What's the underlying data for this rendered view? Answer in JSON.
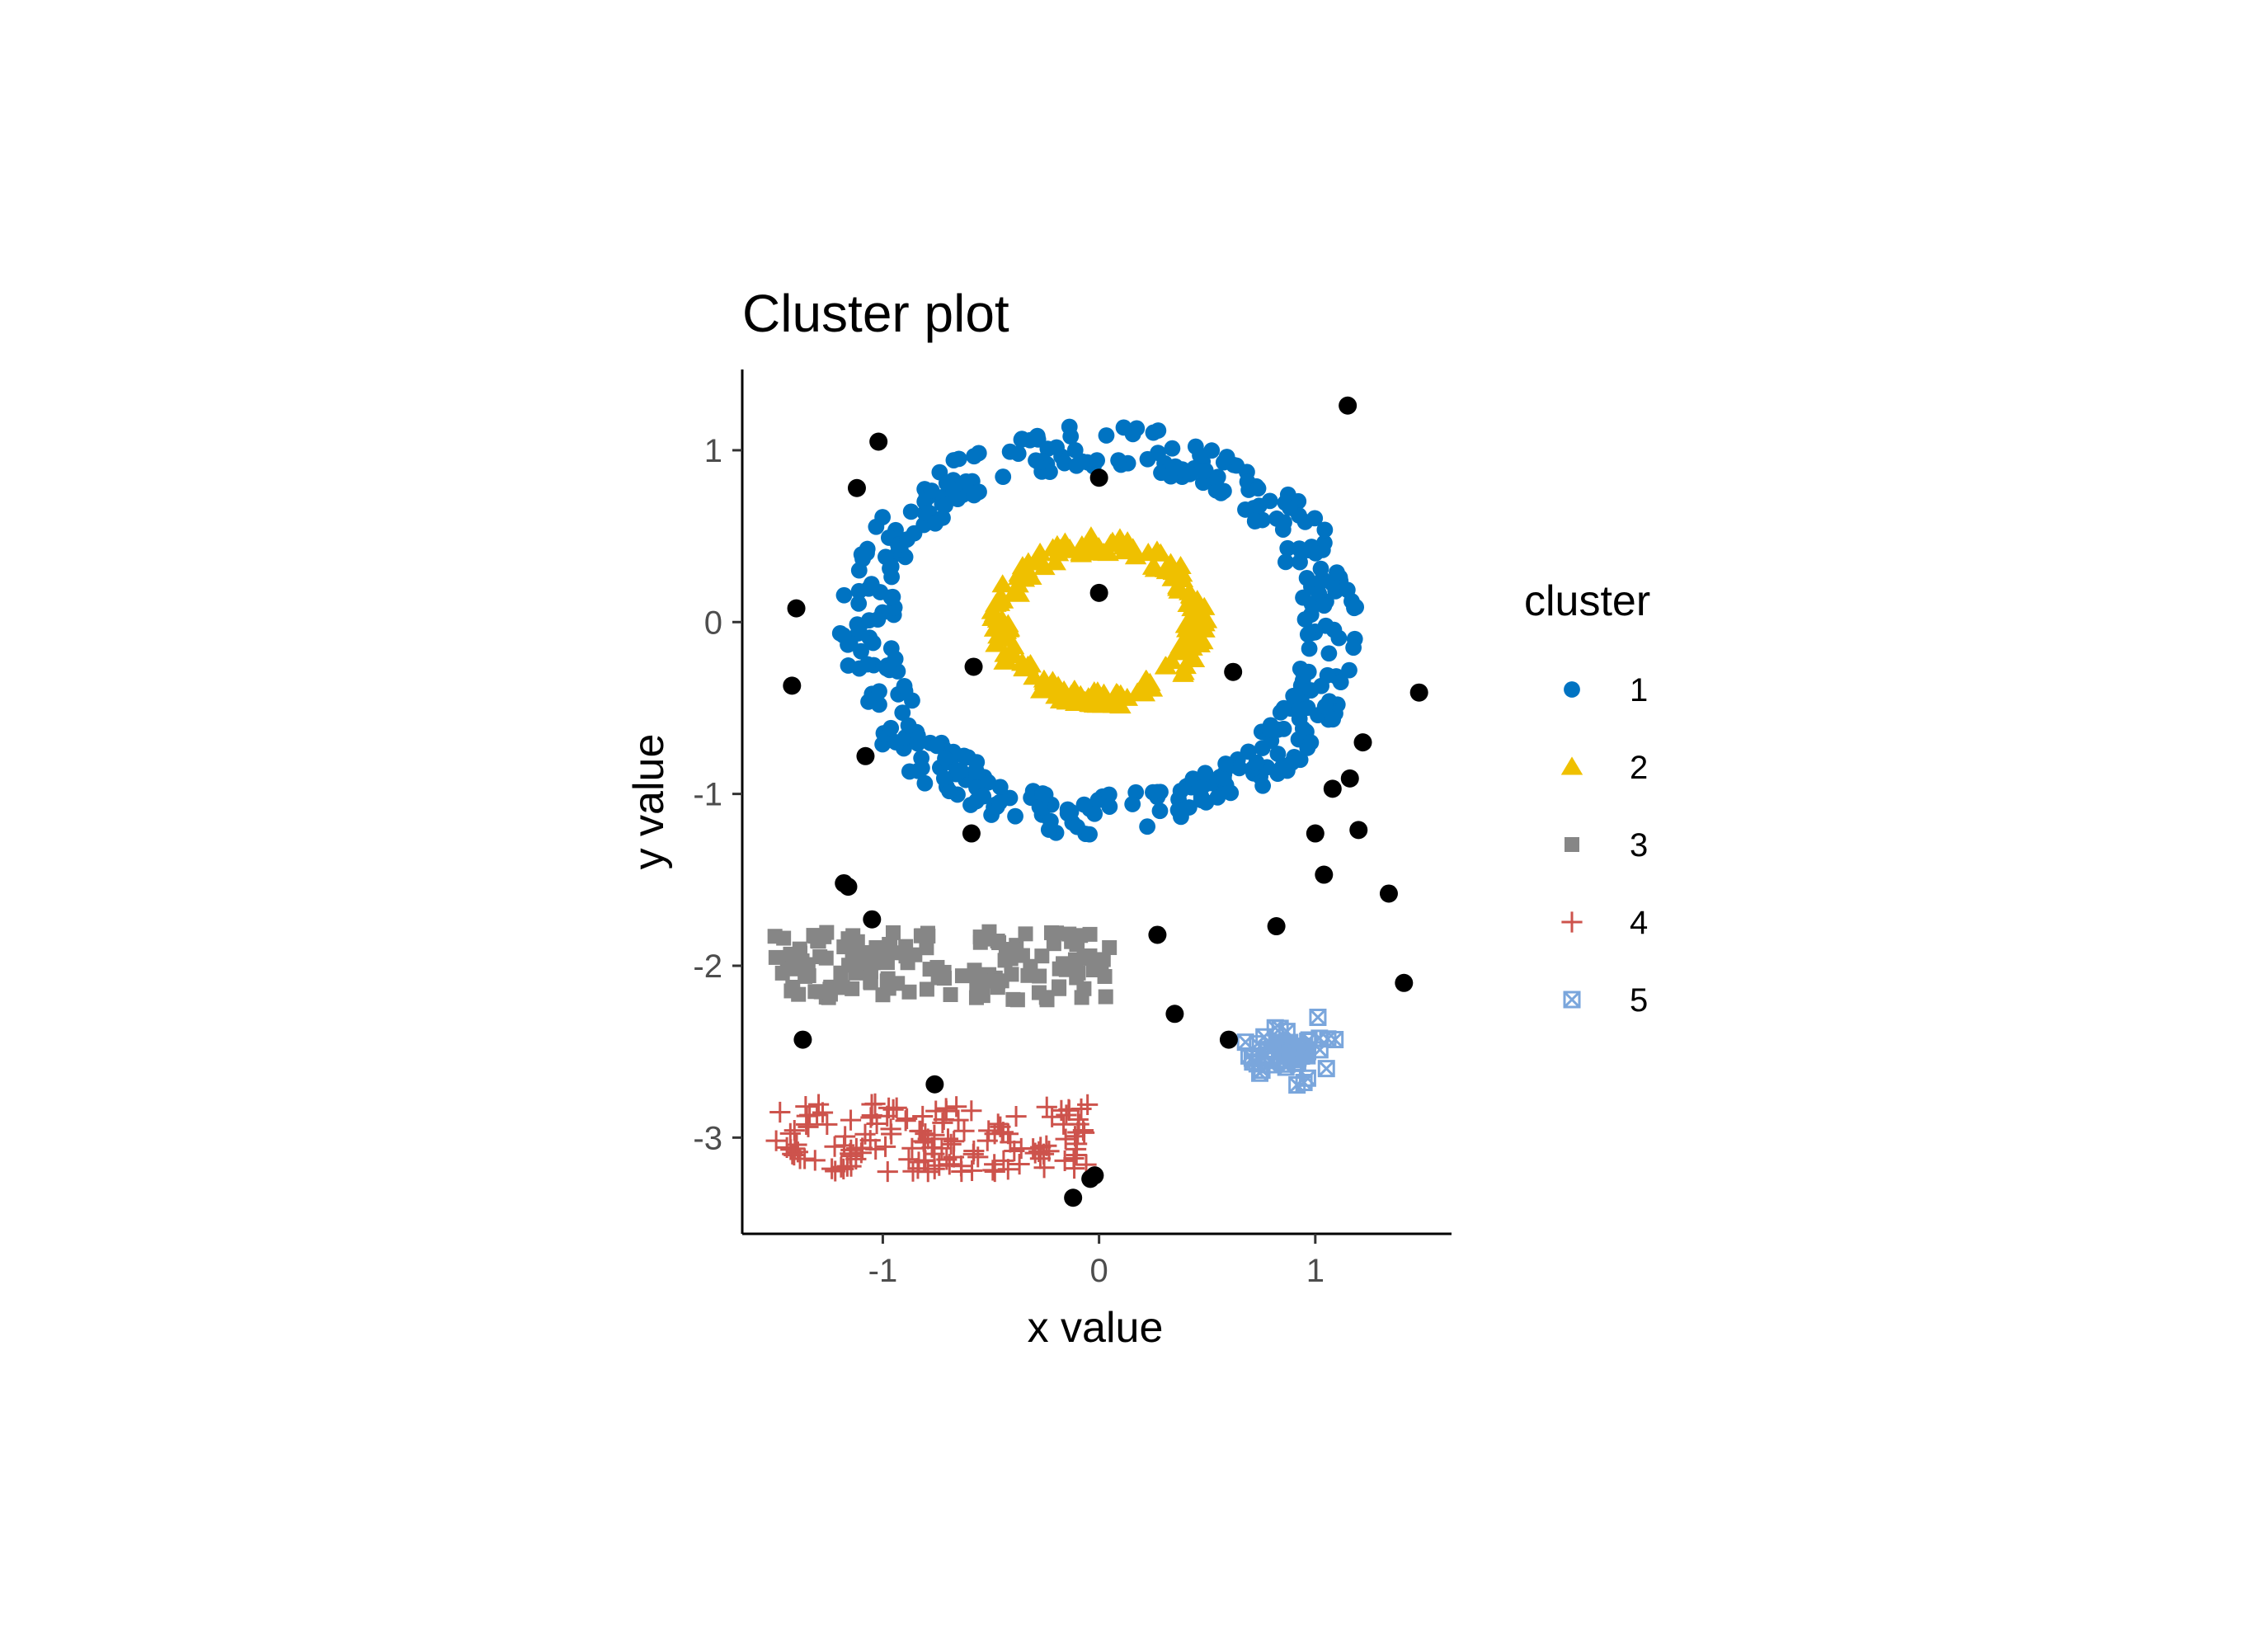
{
  "chart_data": {
    "type": "scatter",
    "title": "Cluster plot",
    "xlabel": "x value",
    "ylabel": "y value",
    "xlim": [
      -1.65,
      1.63
    ],
    "ylim": [
      -3.56,
      1.47
    ],
    "x_ticks": [
      -1,
      0,
      1
    ],
    "y_ticks": [
      1,
      0,
      -1,
      -2,
      -3
    ],
    "x_tick_labels": [
      "-1",
      "0",
      "1"
    ],
    "y_tick_labels": [
      "1",
      "0",
      "-1",
      "-2",
      "-3"
    ],
    "grid": false,
    "legend": {
      "title": "cluster",
      "placement": "right",
      "entries": [
        "1",
        "2",
        "3",
        "4",
        "5"
      ]
    },
    "colors": {
      "1": "#0073C2",
      "2": "#EFC000",
      "3": "#868686",
      "4": "#CD534C",
      "5": "#7AA6DC",
      "noise": "#000000"
    },
    "markers": {
      "1": "circle",
      "2": "triangle",
      "3": "square",
      "4": "plus",
      "5": "boxed-x",
      "noise": "circle"
    },
    "series": [
      {
        "name": "1",
        "shape": "ring",
        "center": [
          0.0,
          -0.05
        ],
        "radius_range": [
          0.95,
          1.2
        ],
        "count": 400
      },
      {
        "name": "2",
        "shape": "ring",
        "center": [
          0.0,
          0.0
        ],
        "radius_range": [
          0.4,
          0.5
        ],
        "count": 200
      },
      {
        "name": "3",
        "shape": "band",
        "x_range": [
          -1.5,
          0.05
        ],
        "y_range": [
          -2.2,
          -1.8
        ],
        "count": 150
      },
      {
        "name": "4",
        "shape": "band",
        "x_range": [
          -1.5,
          -0.05
        ],
        "y_range": [
          -3.2,
          -2.8
        ],
        "count": 150
      },
      {
        "name": "5",
        "shape": "blob",
        "center": [
          1.0,
          -2.45
        ],
        "x_range": [
          0.6,
          1.15
        ],
        "y_range": [
          -2.75,
          -2.25
        ],
        "count": 60
      },
      {
        "name": "noise",
        "points": [
          [
            -1.02,
            1.05
          ],
          [
            1.15,
            1.26
          ],
          [
            -1.12,
            0.78
          ],
          [
            0.0,
            0.84
          ],
          [
            -1.4,
            0.08
          ],
          [
            -1.42,
            -0.37
          ],
          [
            0.0,
            0.17
          ],
          [
            -0.58,
            -0.26
          ],
          [
            0.62,
            -0.29
          ],
          [
            1.48,
            -0.41
          ],
          [
            -1.08,
            -0.78
          ],
          [
            1.22,
            -0.7
          ],
          [
            1.08,
            -0.97
          ],
          [
            1.16,
            -0.91
          ],
          [
            -0.59,
            -1.23
          ],
          [
            1.0,
            -1.23
          ],
          [
            1.2,
            -1.21
          ],
          [
            1.04,
            -1.47
          ],
          [
            -1.18,
            -1.52
          ],
          [
            -1.16,
            -1.54
          ],
          [
            1.34,
            -1.58
          ],
          [
            -1.05,
            -1.73
          ],
          [
            0.82,
            -1.77
          ],
          [
            0.27,
            -1.82
          ],
          [
            1.41,
            -2.1
          ],
          [
            0.35,
            -2.28
          ],
          [
            -1.37,
            -2.43
          ],
          [
            0.6,
            -2.43
          ],
          [
            -0.76,
            -2.69
          ],
          [
            -0.02,
            -3.22
          ],
          [
            -0.04,
            -3.24
          ],
          [
            -0.12,
            -3.35
          ]
        ]
      }
    ]
  }
}
